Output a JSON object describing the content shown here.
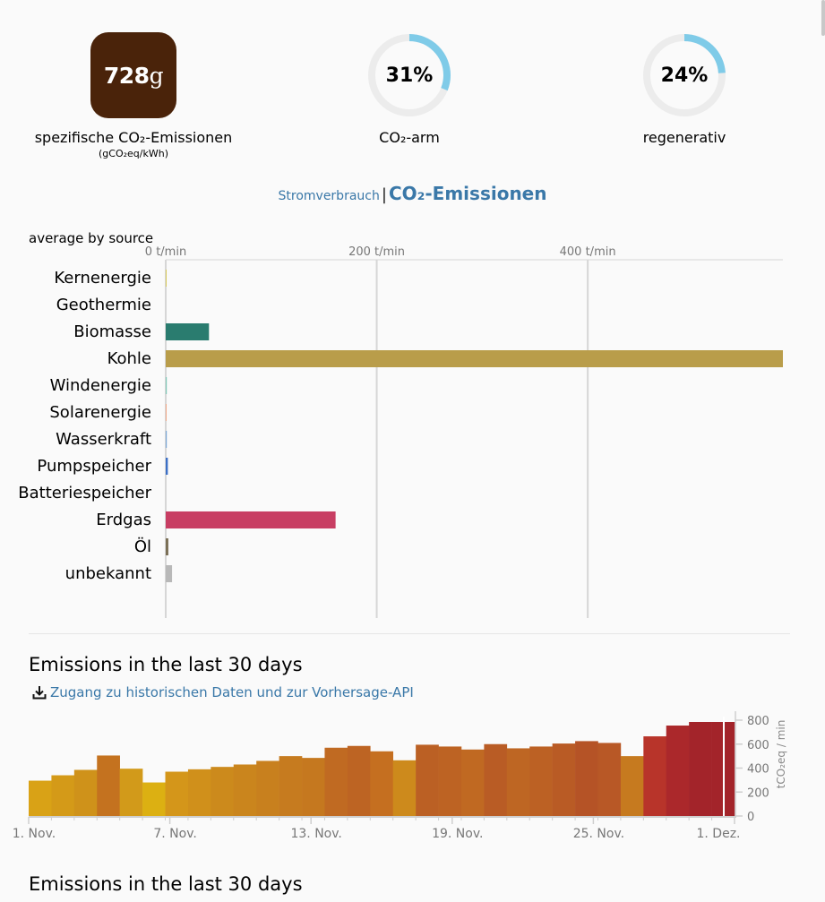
{
  "stats": {
    "intensity": {
      "value": "728",
      "unit": "g",
      "label": "spezifische CO₂-Emissionen",
      "sublabel": "(gCO₂eq/kWh)"
    },
    "low_carbon": {
      "value": "31%",
      "fraction": 0.31,
      "label": "CO₂-arm",
      "ring_color": "#7fcbe8"
    },
    "renewable": {
      "value": "24%",
      "fraction": 0.24,
      "label": "regenerativ",
      "ring_color": "#7fcbe8"
    }
  },
  "toggle": {
    "inactive": "Stromverbrauch",
    "separator": "|",
    "active": "CO₂-Emissionen"
  },
  "chart_data": [
    {
      "type": "bar",
      "orientation": "horizontal",
      "title": "average by source",
      "xlim": [
        0,
        585
      ],
      "xticks": [
        0,
        200,
        400
      ],
      "xtick_labels": [
        "0 t/min",
        "200 t/min",
        "400 t/min"
      ],
      "categories": [
        "Kernenergie",
        "Geothermie",
        "Biomasse",
        "Kohle",
        "Windenergie",
        "Solarenergie",
        "Wasserkraft",
        "Pumpspeicher",
        "Batteriespeicher",
        "Erdgas",
        "Öl",
        "unbekannt"
      ],
      "values": [
        0.5,
        0,
        41,
        585,
        1,
        0.8,
        1,
        2,
        0,
        161,
        2.5,
        6
      ],
      "colors": [
        "#d9c200",
        "#b5651d",
        "#2a7c6f",
        "#b99d4a",
        "#7ec7b6",
        "#f4a582",
        "#7aa6d6",
        "#3b6fc6",
        "#6a5fbf",
        "#c83e63",
        "#7a6f55",
        "#b8b8b8"
      ]
    },
    {
      "type": "bar",
      "title": "Emissions in the last 30 days",
      "ylabel": "tCO₂eq / min",
      "ylim": [
        0,
        800
      ],
      "yticks": [
        0,
        200,
        400,
        600,
        800
      ],
      "xtick_labels": [
        "1. Nov.",
        "7. Nov.",
        "13. Nov.",
        "19. Nov.",
        "25. Nov.",
        "1. Dez."
      ],
      "xtick_indices": [
        0,
        6,
        12,
        18,
        24,
        30
      ],
      "values": [
        295,
        340,
        385,
        505,
        395,
        280,
        370,
        390,
        410,
        430,
        460,
        500,
        485,
        570,
        585,
        540,
        465,
        595,
        580,
        555,
        600,
        565,
        580,
        605,
        625,
        610,
        500,
        665,
        755,
        785,
        785
      ],
      "colors": [
        "#d9a216",
        "#d49a18",
        "#cf921a",
        "#c4721f",
        "#d29a1a",
        "#dcb012",
        "#d4961a",
        "#d0901b",
        "#cc8a1c",
        "#ca851d",
        "#c8801e",
        "#c67b1f",
        "#c5781f",
        "#c06a22",
        "#bd6423",
        "#c56f20",
        "#cd8a1c",
        "#bb6024",
        "#bd6323",
        "#c06922",
        "#b95c25",
        "#be6623",
        "#bc6124",
        "#b95b25",
        "#b55326",
        "#b85826",
        "#c67a1f",
        "#b8342a",
        "#ab282b",
        "#a3242a",
        "#a3242a"
      ]
    }
  ],
  "history": {
    "title": "Emissions in the last 30 days",
    "link_label": "Zugang zu historischen Daten und zur Vorhersage-API",
    "second_title": "Emissions in the last 30 days"
  }
}
